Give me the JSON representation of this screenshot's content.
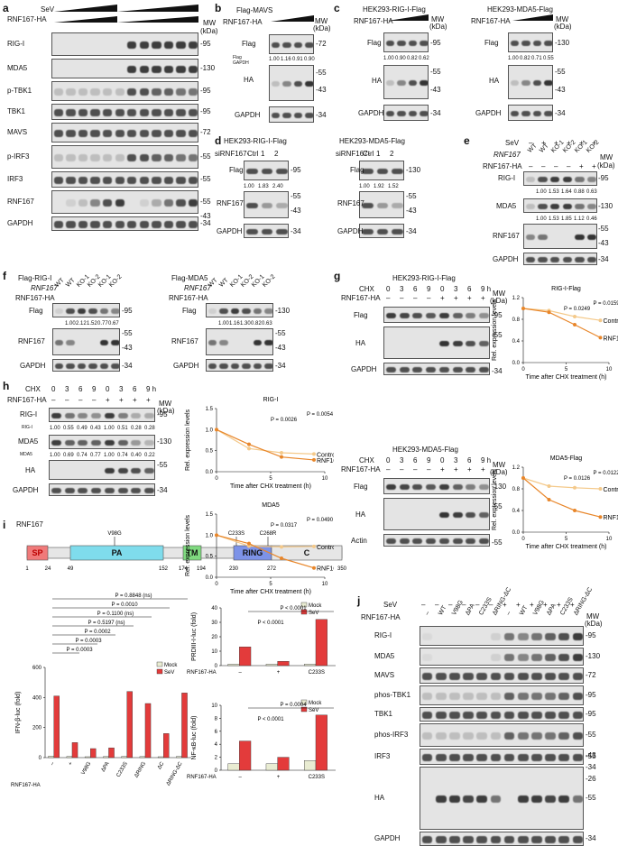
{
  "panels": {
    "a": {
      "letter": "a",
      "sev": "SeV",
      "rnf": "RNF167-HA",
      "mw": "MW\n(kDa)",
      "rows": [
        {
          "label": "RIG-I",
          "mw": "-95"
        },
        {
          "label": "MDA5",
          "mw": "-130"
        },
        {
          "label": "p-TBK1",
          "mw": "-95"
        },
        {
          "label": "TBK1",
          "mw": "-95"
        },
        {
          "label": "MAVS",
          "mw": "-72"
        },
        {
          "label": "p-IRF3",
          "mw": "-55"
        },
        {
          "label": "IRF3",
          "mw": "-55"
        },
        {
          "label": "RNF167",
          "mw": "-55"
        },
        {
          "label": "GAPDH",
          "mw": "-34"
        }
      ]
    },
    "b": {
      "letter": "b",
      "top": "Flag-MAVS",
      "rnf": "RNF167-HA",
      "mw": "MW\n(kDa)",
      "q_label": "Flag\nGAPDH",
      "q": [
        "1.00",
        "1.16",
        "0.91",
        "0.90"
      ],
      "rows": [
        {
          "label": "Flag",
          "mw": "-72"
        },
        {
          "label": "HA",
          "mw": "-55"
        },
        {
          "label": "GAPDH",
          "mw": "-34"
        }
      ],
      "mw_extra": "-43"
    },
    "c1": {
      "letter": "c",
      "title": "HEK293-RIG-I-Flag",
      "rnf": "RNF167-HA",
      "q": [
        "1.00",
        "0.90",
        "0.82",
        "0.62"
      ],
      "rows": [
        {
          "label": "Flag",
          "mw": "-95"
        },
        {
          "label": "HA",
          "mw": "-55"
        },
        {
          "label": "GAPDH",
          "mw": "-34"
        }
      ],
      "mw_extra": "-43"
    },
    "c2": {
      "title": "HEK293-MDA5-Flag",
      "rnf": "RNF167-HA",
      "q": [
        "1.00",
        "0.82",
        "0.71",
        "0.55"
      ],
      "rows": [
        {
          "label": "Flag",
          "mw": "-130"
        },
        {
          "label": "HA",
          "mw": "-55"
        },
        {
          "label": "GAPDH",
          "mw": "-34"
        }
      ],
      "mw_extra": "-43"
    },
    "d1": {
      "letter": "d",
      "title": "HEK293-RIG-I-Flag",
      "si": "siRNF167-",
      "lanes": [
        "Ctrl",
        "1",
        "2"
      ],
      "q": [
        "1.00",
        "1.83",
        "2.40"
      ],
      "rows": [
        {
          "label": "Flag",
          "mw": "-95"
        },
        {
          "label": "RNF167",
          "mw": "-55"
        },
        {
          "label": "GAPDH",
          "mw": "-34"
        }
      ],
      "mw_extra": "-43"
    },
    "d2": {
      "title": "HEK293-MDA5-Flag",
      "si": "siRNF167-",
      "lanes": [
        "Ctrl",
        "1",
        "2"
      ],
      "q": [
        "1.00",
        "1.92",
        "1.52"
      ],
      "rows": [
        {
          "label": "Flag",
          "mw": "-130"
        },
        {
          "label": "RNF167",
          "mw": "-55"
        },
        {
          "label": "GAPDH",
          "mw": "-34"
        }
      ],
      "mw_extra": "-43"
    },
    "e": {
      "letter": "e",
      "sev": "SeV",
      "rnf167": "RNF167",
      "rnfha": "RNF167-HA",
      "lanes": [
        "WT",
        "WT",
        "KO-1",
        "KO-2",
        "KO-1",
        "KO-2"
      ],
      "sev_signs": [
        "–",
        "+",
        "+",
        "+",
        "+",
        "+"
      ],
      "ha_signs": [
        "–",
        "–",
        "–",
        "–",
        "+",
        "+"
      ],
      "q1": [
        "1.00",
        "1.53",
        "1.64",
        "0.88",
        "0.63"
      ],
      "q2": [
        "1.00",
        "1.53",
        "1.85",
        "1.12",
        "0.46"
      ],
      "rows": [
        {
          "label": "RIG-I",
          "mw": "-95"
        },
        {
          "label": "MDA5",
          "mw": "-130"
        },
        {
          "label": "RNF167",
          "mw": "-55"
        },
        {
          "label": "GAPDH",
          "mw": "-34"
        }
      ],
      "mw_extra": "-43"
    },
    "f1": {
      "letter": "f",
      "top": "Flag-RIG-I",
      "rnf167": "RNF167",
      "rnfha": "RNF167-HA",
      "lanes": [
        "WT",
        "WT",
        "KO-1",
        "KO-2",
        "KO-1",
        "KO-2"
      ],
      "q": [
        "1.00",
        "2.12",
        "1.52",
        "0.77",
        "0.67"
      ],
      "rows": [
        {
          "label": "Flag",
          "mw": "-95"
        },
        {
          "label": "RNF167",
          "mw": "-55"
        },
        {
          "label": "GAPDH",
          "mw": "-34"
        }
      ],
      "mw_extra": "-43"
    },
    "f2": {
      "top": "Flag-MDA5",
      "rnf167": "RNF167",
      "rnfha": "RNF167-HA",
      "lanes": [
        "WT",
        "WT",
        "KO-1",
        "KO-2",
        "KO-1",
        "KO-2"
      ],
      "q": [
        "1.00",
        "1.16",
        "1.30",
        "0.82",
        "0.63"
      ],
      "rows": [
        {
          "label": "Flag",
          "mw": "-130"
        },
        {
          "label": "RNF167",
          "mw": "-55"
        },
        {
          "label": "GAPDH",
          "mw": "-34"
        }
      ],
      "mw_extra": "-43"
    },
    "g1": {
      "letter": "g",
      "title": "HEK293-RIG-I-Flag",
      "chx": "CHX",
      "rnfha": "RNF167-HA",
      "times": [
        "0",
        "3",
        "6",
        "9",
        "0",
        "3",
        "6",
        "9 h"
      ],
      "rows": [
        {
          "label": "Flag",
          "mw": "-95"
        },
        {
          "label": "HA",
          "mw": "-55"
        },
        {
          "label": "GAPDH",
          "mw": "-34"
        }
      ]
    },
    "g2": {
      "title": "HEK293-MDA5-Flag",
      "chx": "CHX",
      "rnfha": "RNF167-HA",
      "times": [
        "0",
        "3",
        "6",
        "9",
        "0",
        "3",
        "6",
        "9 h"
      ],
      "rows": [
        {
          "label": "Flag",
          "mw": "-130"
        },
        {
          "label": "HA",
          "mw": "-55"
        },
        {
          "label": "Actin",
          "mw": "-55"
        }
      ]
    },
    "h": {
      "letter": "h",
      "chx": "CHX",
      "rnfha": "RNF167-HA",
      "times": [
        "0",
        "3",
        "6",
        "9",
        "0",
        "3",
        "6",
        "9 h"
      ],
      "q1": [
        "1.00",
        "0.55",
        "0.49",
        "0.43",
        "1.00",
        "0.51",
        "0.28",
        "0.28"
      ],
      "q2": [
        "1.00",
        "0.69",
        "0.74",
        "0.77",
        "1.00",
        "0.74",
        "0.40",
        "0.22"
      ],
      "rows": [
        {
          "label": "RIG-I",
          "mw": "-95"
        },
        {
          "label": "MDA5",
          "mw": "-130"
        },
        {
          "label": "HA",
          "mw": "-55"
        },
        {
          "label": "GAPDH",
          "mw": "-34"
        }
      ]
    },
    "i": {
      "letter": "i",
      "protein": "RNF167",
      "domains": [
        {
          "name": "SP",
          "color": "#f07a7a"
        },
        {
          "name": "PA",
          "color": "#7fdcec"
        },
        {
          "name": "TM",
          "color": "#7fd97f"
        },
        {
          "name": "RING",
          "color": "#7d93e8"
        },
        {
          "name": "C",
          "color": "#e6e6e6"
        }
      ],
      "positions": [
        "1",
        "24",
        "49",
        "152",
        "174",
        "194",
        "230",
        "272",
        "350"
      ],
      "mut": [
        "V98G",
        "C233S",
        "C268R"
      ]
    },
    "j": {
      "letter": "j",
      "sev": "SeV",
      "rnfha": "RNF167-HA",
      "lanes": [
        "–",
        "WT",
        "V98G",
        "ΔPA",
        "C233S",
        "ΔRING-ΔC",
        "–",
        "WT",
        "V98G",
        "ΔPA",
        "C233S",
        "ΔRING-ΔC"
      ],
      "rows": [
        {
          "label": "RIG-I",
          "mw": "-95"
        },
        {
          "label": "MDA5",
          "mw": "-130"
        },
        {
          "label": "MAVS",
          "mw": "-72"
        },
        {
          "label": "phos-TBK1",
          "mw": "-95"
        },
        {
          "label": "TBK1",
          "mw": "-95"
        },
        {
          "label": "phos-IRF3",
          "mw": "-55"
        },
        {
          "label": "IRF3",
          "mw": "-55"
        },
        {
          "label": "HA",
          "mw": "-55"
        },
        {
          "label": "GAPDH",
          "mw": "-34"
        }
      ],
      "ha_mw": [
        "-43",
        "-34",
        "-26"
      ]
    }
  },
  "chart_data": [
    {
      "type": "line",
      "title": "RIG-I-Flag",
      "xlabel": "Time after CHX treatment (h)",
      "ylabel": "Rel. expression levels",
      "x": [
        0,
        3,
        6,
        9
      ],
      "ylim": [
        0,
        1.2
      ],
      "xlim": [
        0,
        10
      ],
      "series": [
        {
          "name": "Control",
          "values": [
            1.0,
            0.96,
            0.85,
            0.78
          ],
          "color": "#f4c98a"
        },
        {
          "name": "RNF167-HA",
          "values": [
            1.0,
            0.93,
            0.7,
            0.46
          ],
          "color": "#e8862a"
        }
      ],
      "annotations": [
        "P = 0.0249",
        "P = 0.0159"
      ]
    },
    {
      "type": "line",
      "title": "MDA5-Flag",
      "xlabel": "Time after CHX treatment (h)",
      "ylabel": "Rel. expression levels",
      "x": [
        0,
        3,
        6,
        9
      ],
      "ylim": [
        0,
        1.2
      ],
      "xlim": [
        0,
        10
      ],
      "series": [
        {
          "name": "Control",
          "values": [
            1.0,
            0.85,
            0.82,
            0.8
          ],
          "color": "#f4c98a"
        },
        {
          "name": "RNF167-HA",
          "values": [
            1.0,
            0.6,
            0.4,
            0.28
          ],
          "color": "#e8862a"
        }
      ],
      "annotations": [
        "P = 0.0126",
        "P = 0.0122"
      ]
    },
    {
      "type": "line",
      "title": "RIG-I",
      "xlabel": "Time after CHX treatment (h)",
      "ylabel": "Rel. expression levels",
      "x": [
        0,
        3,
        6,
        9
      ],
      "ylim": [
        0,
        1.5
      ],
      "xlim": [
        0,
        10
      ],
      "series": [
        {
          "name": "Control",
          "values": [
            1.0,
            0.55,
            0.45,
            0.42
          ],
          "color": "#f4c98a"
        },
        {
          "name": "RNF167-HA",
          "values": [
            1.0,
            0.65,
            0.35,
            0.28
          ],
          "color": "#e8862a"
        }
      ],
      "annotations": [
        "P = 0.0026",
        "P = 0.0054"
      ]
    },
    {
      "type": "line",
      "title": "MDA5",
      "xlabel": "Time after CHX treatment (h)",
      "ylabel": "Rel. expression levels",
      "x": [
        0,
        3,
        6,
        9
      ],
      "ylim": [
        0,
        1.5
      ],
      "xlim": [
        0,
        10
      ],
      "series": [
        {
          "name": "Control",
          "values": [
            1.0,
            0.74,
            0.72,
            0.73
          ],
          "color": "#f4c98a"
        },
        {
          "name": "RNF167-HA",
          "values": [
            1.0,
            0.8,
            0.45,
            0.22
          ],
          "color": "#e8862a"
        }
      ],
      "annotations": [
        "P = 0.0317",
        "P = 0.0490"
      ]
    },
    {
      "type": "bar",
      "ylabel": "IFN-β-luc (fold)",
      "ylim": [
        0,
        600
      ],
      "yticks": [
        0,
        200,
        400,
        600
      ],
      "categories": [
        "–",
        "+",
        "V98G",
        "ΔPA",
        "C233S",
        "ΔRING",
        "ΔC",
        "ΔRING-ΔC"
      ],
      "xlabel": "RNF167-HA",
      "series": [
        {
          "name": "Mock",
          "values": [
            10,
            8,
            6,
            7,
            8,
            7,
            6,
            8
          ],
          "color": "#e9ecd2"
        },
        {
          "name": "SeV",
          "values": [
            410,
            100,
            60,
            65,
            440,
            360,
            160,
            430
          ],
          "color": "#e33b3b"
        }
      ],
      "annotations": [
        "P = 0.8848 (ns)",
        "P = 0.0010",
        "P = 0.1100 (ns)",
        "P = 0.5197 (ns)",
        "P = 0.0002",
        "P = 0.0003",
        "P = 0.0003"
      ]
    },
    {
      "type": "bar",
      "ylabel": "PRDIII-I-luc (fold)",
      "ylim": [
        0,
        40
      ],
      "yticks": [
        0,
        10,
        20,
        30,
        40
      ],
      "categories": [
        "–",
        "+",
        "C233S"
      ],
      "xlabel": "RNF167-HA",
      "series": [
        {
          "name": "Mock",
          "values": [
            1,
            1,
            1
          ],
          "color": "#e9ecd2"
        },
        {
          "name": "SeV",
          "values": [
            13,
            3,
            32
          ],
          "color": "#e33b3b"
        }
      ],
      "annotations": [
        "P < 0.0001",
        "P < 0.0001"
      ]
    },
    {
      "type": "bar",
      "ylabel": "NF-κB-luc (fold)",
      "ylim": [
        0,
        10
      ],
      "yticks": [
        0,
        2,
        4,
        6,
        8,
        10
      ],
      "categories": [
        "–",
        "+",
        "C233S"
      ],
      "xlabel": "RNF167-HA",
      "series": [
        {
          "name": "Mock",
          "values": [
            1,
            1,
            1.5
          ],
          "color": "#e9ecd2"
        },
        {
          "name": "SeV",
          "values": [
            4.5,
            2,
            8.5
          ],
          "color": "#e33b3b"
        }
      ],
      "annotations": [
        "P < 0.0001",
        "P = 0.0004"
      ]
    }
  ]
}
